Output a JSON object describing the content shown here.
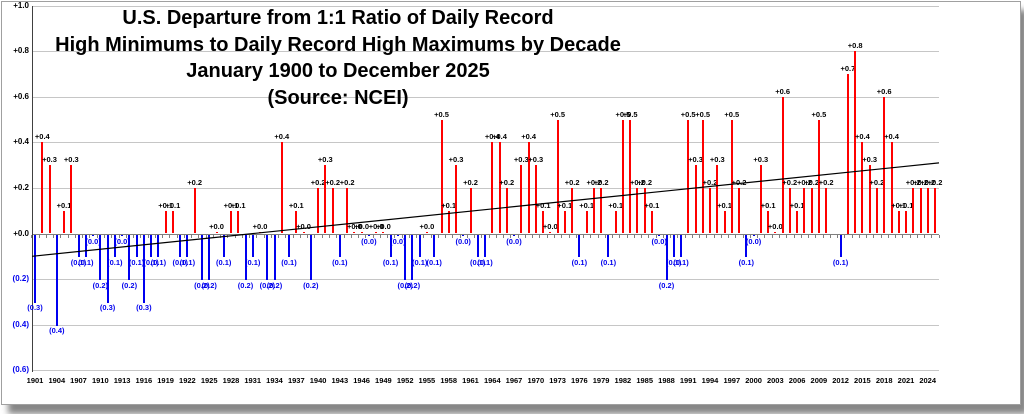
{
  "title": {
    "line1": "U.S. Departure from 1:1 Ratio of Daily Record",
    "line2": "High Minimums to Daily Record High Maximums by Decade",
    "line3": "January 1900 to December 2025",
    "line4": "(Source: NCEI)"
  },
  "chart_data": {
    "type": "bar",
    "title": "U.S. Departure from 1:1 Ratio of Daily Record High Minimums to Daily Record High Maximums by Decade, January 1900 to December 2025 (Source: NCEI)",
    "xlabel": "",
    "ylabel": "",
    "ylim": [
      -0.6,
      1.0
    ],
    "grid": "horizontal",
    "legend": "none",
    "x_start_year": 1901,
    "x_end_year": 2025,
    "x_tick_years": [
      1901,
      1904,
      1907,
      1910,
      1913,
      1916,
      1919,
      1922,
      1925,
      1928,
      1931,
      1934,
      1937,
      1940,
      1943,
      1946,
      1949,
      1952,
      1955,
      1958,
      1961,
      1964,
      1967,
      1970,
      1973,
      1976,
      1979,
      1982,
      1985,
      1988,
      1991,
      1994,
      1997,
      2000,
      2003,
      2006,
      2009,
      2012,
      2015,
      2018,
      2021,
      2024
    ],
    "y_ticks": [
      {
        "v": 1.0,
        "label": "+1.0"
      },
      {
        "v": 0.8,
        "label": "+0.8"
      },
      {
        "v": 0.6,
        "label": "+0.6"
      },
      {
        "v": 0.4,
        "label": "+0.4"
      },
      {
        "v": 0.2,
        "label": "+0.2"
      },
      {
        "v": 0.0,
        "label": "+0.0"
      },
      {
        "v": -0.2,
        "label": "(0.2)"
      },
      {
        "v": -0.4,
        "label": "(0.4)"
      },
      {
        "v": -0.6,
        "label": "(0.6)"
      }
    ],
    "series": [
      {
        "name": "Departure from 1:1 ratio",
        "years_note": "one bar per year, 1901-2025; 2011 has no visible bar; negative values shown in parentheses and blue, positive in red",
        "values": [
          -0.3,
          0.4,
          0.3,
          -0.4,
          0.1,
          0.3,
          -0.1,
          -0.1,
          0,
          -0.2,
          -0.3,
          -0.1,
          0,
          -0.2,
          -0.1,
          -0.3,
          -0.1,
          -0.1,
          0.1,
          0.1,
          -0.1,
          -0.1,
          0.2,
          -0.2,
          -0.2,
          0,
          -0.1,
          0.1,
          0.1,
          -0.2,
          -0.1,
          0,
          -0.2,
          -0.2,
          0.4,
          -0.1,
          0.1,
          0,
          -0.2,
          0.2,
          0.3,
          0.2,
          -0.1,
          0.2,
          0,
          0,
          0,
          0,
          0,
          -0.1,
          0,
          -0.2,
          -0.2,
          -0.1,
          0,
          -0.1,
          0.5,
          0.1,
          0.3,
          0,
          0.2,
          -0.1,
          -0.1,
          0.4,
          0.4,
          0.2,
          0,
          0.3,
          0.4,
          0.3,
          0.1,
          0,
          0.5,
          0.1,
          0.2,
          -0.1,
          0.1,
          0.2,
          0.2,
          -0.1,
          0.1,
          0.5,
          0.5,
          0.2,
          0.2,
          0.1,
          0,
          -0.2,
          -0.1,
          -0.1,
          0.5,
          0.3,
          0.5,
          0.2,
          0.3,
          0.1,
          0.5,
          0.2,
          -0.1,
          0,
          0.3,
          0.1,
          0,
          0.6,
          0.2,
          0.1,
          0.2,
          0.2,
          0.5,
          0.2,
          null,
          -0.1,
          0.7,
          0.8,
          0.4,
          0.3,
          0.2,
          0.6,
          0.4,
          0.1,
          0.1,
          0.2,
          0.2,
          0.2,
          0.2
        ],
        "labels": [
          "(0.3)",
          "+0.4",
          "+0.3",
          "(0.4)",
          "+0.1",
          "+0.3",
          "(0.1)",
          "(0.1)",
          "(0.0)",
          "(0.2)",
          "(0.3)",
          "(0.1)",
          "(0.0)",
          "(0.2)",
          "(0.1)",
          "(0.3)",
          "(0.1)",
          "(0.1)",
          "+0.1",
          "+0.1",
          "(0.1)",
          "(0.1)",
          "+0.2",
          "(0.2)",
          "(0.2)",
          "+0.0",
          "(0.1)",
          "+0.1",
          "+0.1",
          "(0.2)",
          "(0.1)",
          "+0.0",
          "(0.2)",
          "(0.2)",
          "+0.4",
          "(0.1)",
          "+0.1",
          "+0.0",
          "(0.2)",
          "+0.2",
          "+0.3",
          "+0.2",
          "(0.1)",
          "+0.2",
          "+0.0",
          "+0.0",
          "(0.0)",
          "+0.0",
          "+0.0",
          "(0.1)",
          "(0.0)",
          "(0.2)",
          "(0.2)",
          "(0.1)",
          "+0.0",
          "(0.1)",
          "+0.5",
          "+0.1",
          "+0.3",
          "(0.0)",
          "+0.2",
          "(0.1)",
          "(0.1)",
          "+0.4",
          "+0.4",
          "+0.2",
          "(0.0)",
          "+0.3",
          "+0.4",
          "+0.3",
          "+0.1",
          "+0.0",
          "+0.5",
          "+0.1",
          "+0.2",
          "(0.1)",
          "+0.1",
          "+0.2",
          "+0.2",
          "(0.1)",
          "+0.1",
          "+0.5",
          "+0.5",
          "+0.2",
          "+0.2",
          "+0.1",
          "(0.0)",
          "(0.2)",
          "(0.1)",
          "(0.1)",
          "+0.5",
          "+0.3",
          "+0.5",
          "+0.2",
          "+0.3",
          "+0.1",
          "+0.5",
          "+0.2",
          "(0.1)",
          "(0.0)",
          "+0.3",
          "+0.1",
          "+0.0",
          "+0.6",
          "+0.2",
          "+0.1",
          "+0.2",
          "+0.2",
          "+0.5",
          "+0.2",
          null,
          "(0.1)",
          "+0.7",
          "+0.8",
          "+0.4",
          "+0.3",
          "+0.2",
          "+0.6",
          "+0.4",
          "+0.1",
          "+0.1",
          "+0.2",
          "+0.2",
          "+0.2",
          "+0.2"
        ]
      }
    ],
    "trend_line": {
      "type": "linear",
      "start_value": -0.1,
      "end_value": 0.31
    },
    "colors": {
      "positive_bar": "#ff0000",
      "negative_bar": "#0000f0",
      "positive_label": "#000000",
      "negative_label": "#0000ee",
      "gridline": "#c6c6c6",
      "zero_axis": "#7f7f7f",
      "trend": "#000000"
    }
  }
}
